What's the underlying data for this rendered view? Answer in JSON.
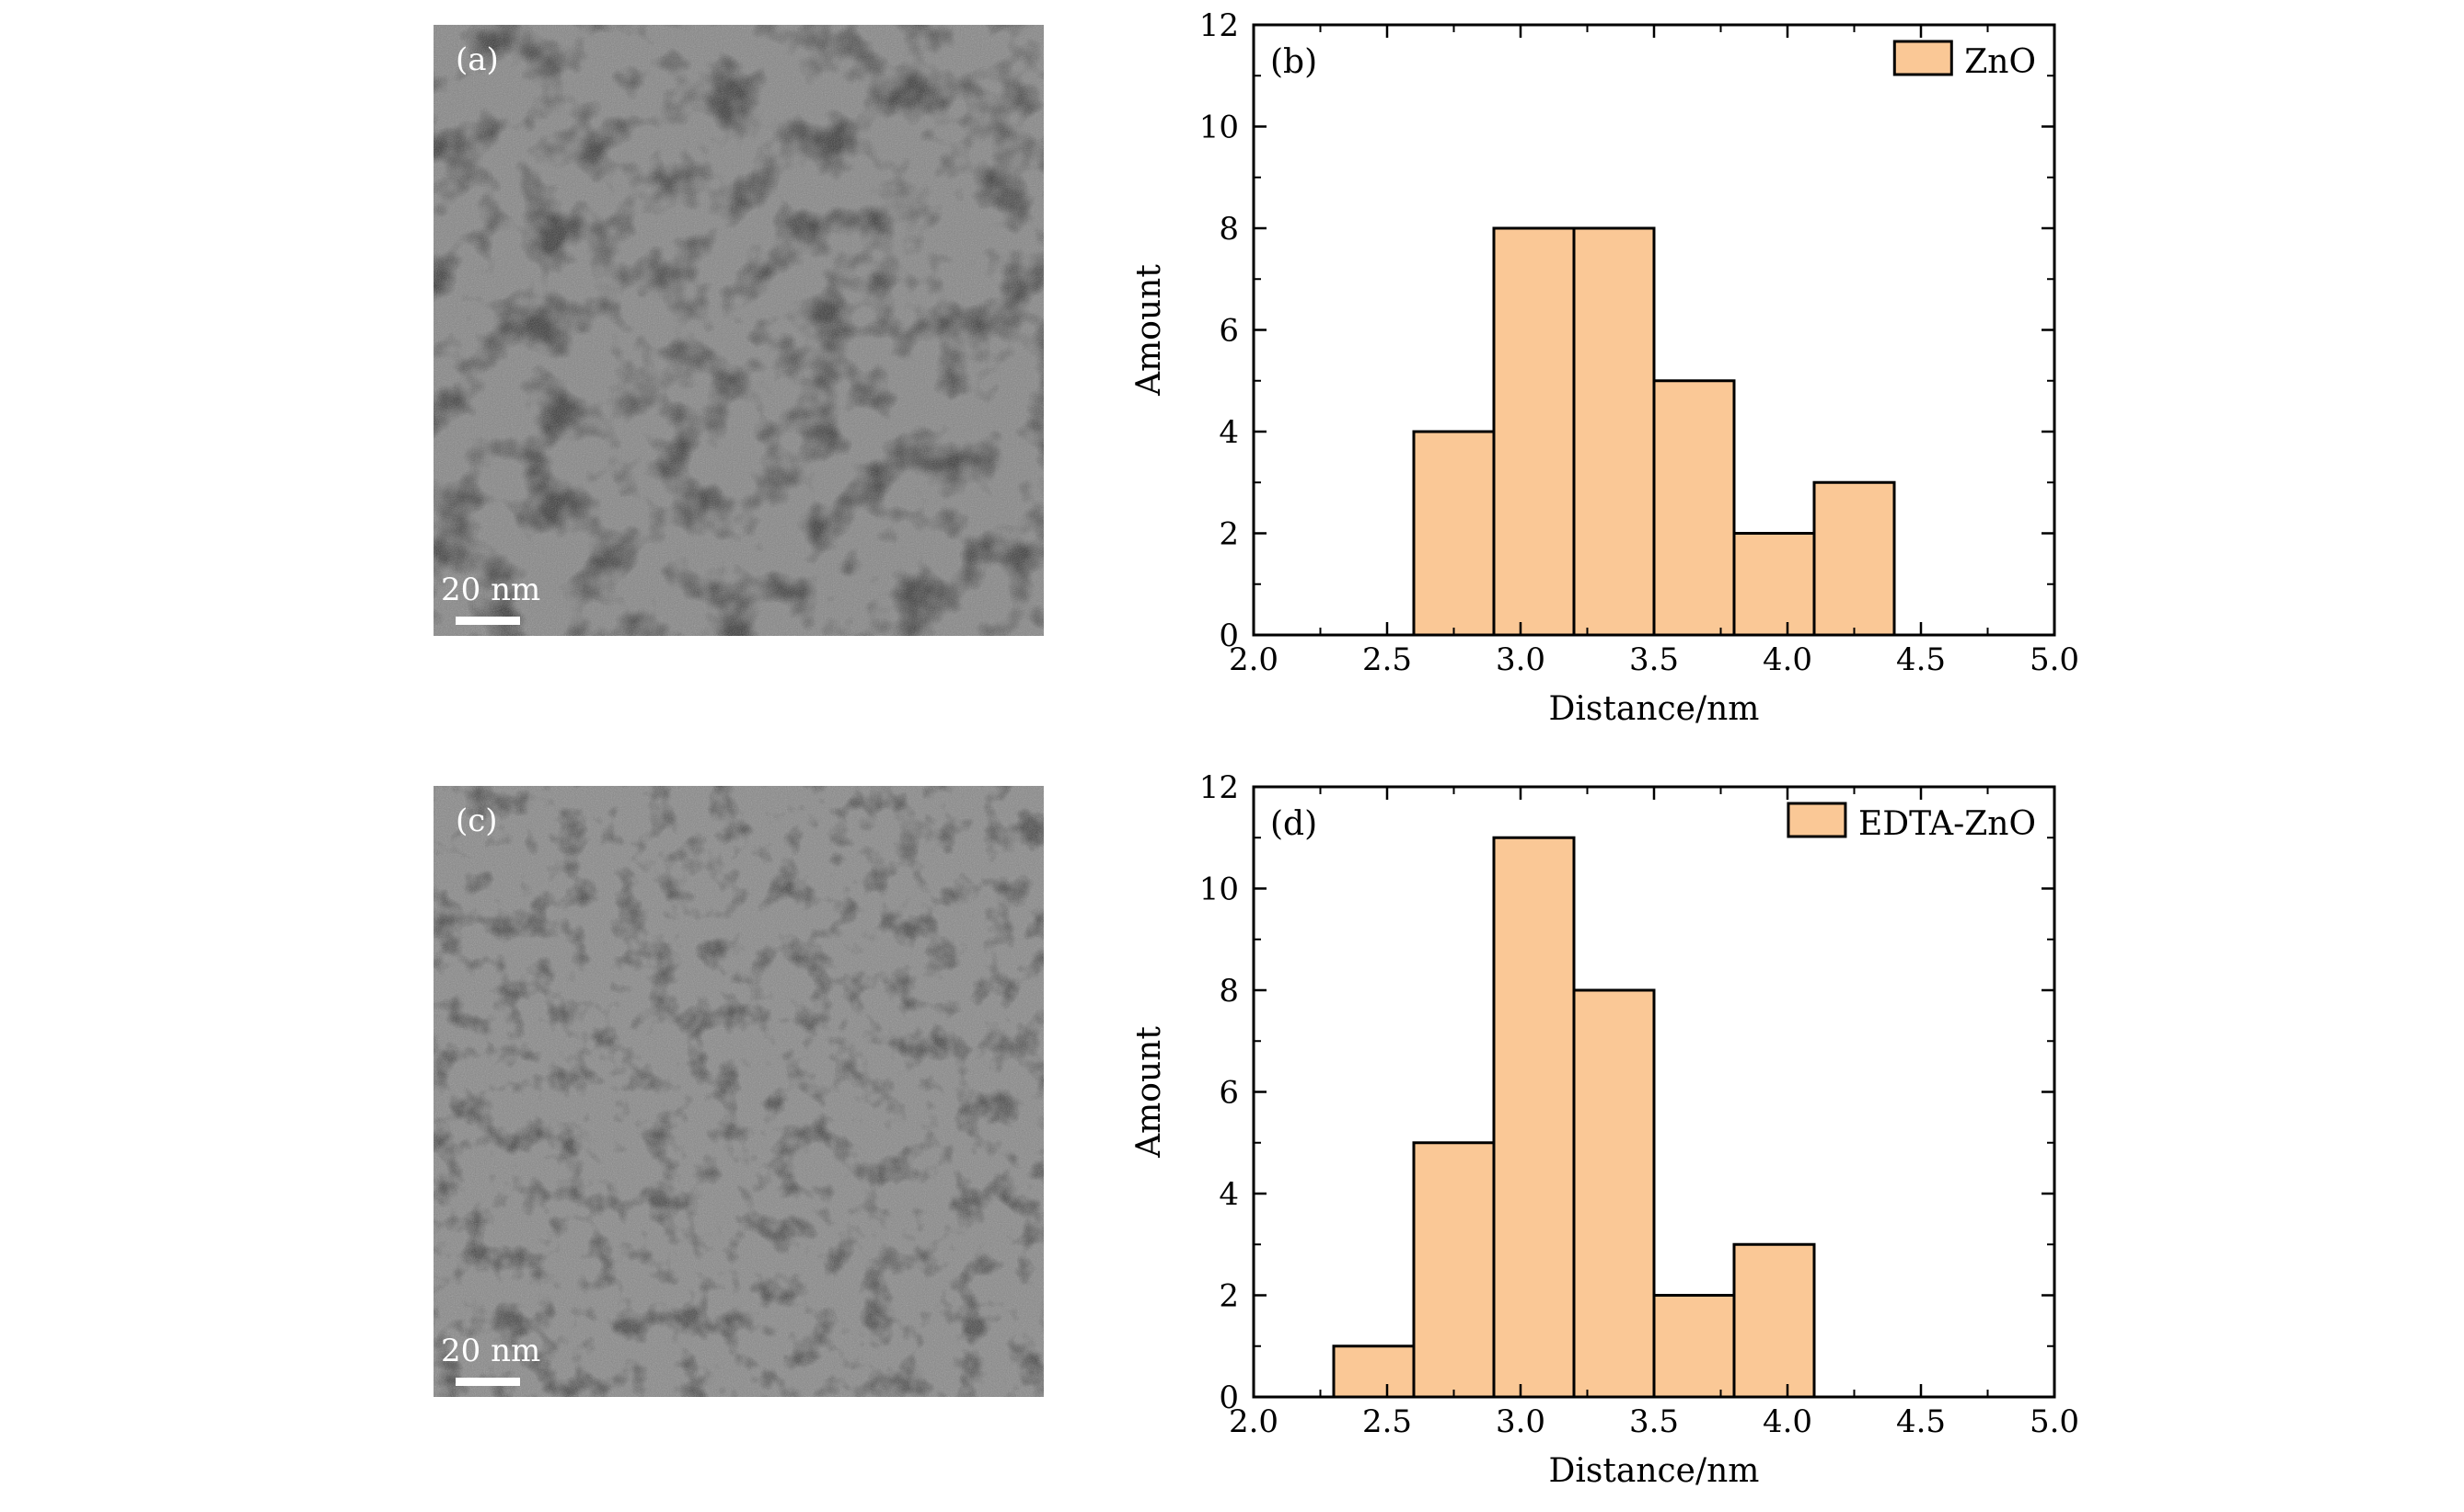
{
  "images": [
    {
      "label": "(a)",
      "scale_bar": "20 nm"
    },
    {
      "label": "(c)",
      "scale_bar": "20 nm"
    }
  ],
  "colors": {
    "bar_fill": "#fac896",
    "bar_stroke": "#000000",
    "tem_base": "#808080"
  },
  "chart_data": [
    {
      "type": "bar",
      "panel_label": "(b)",
      "legend": {
        "label": "ZnO",
        "position": "top-right"
      },
      "xlabel": "Distance/nm",
      "ylabel": "Amount",
      "xlim": [
        2.0,
        5.0
      ],
      "ylim": [
        0,
        12
      ],
      "xticks": [
        "2.0",
        "2.5",
        "3.0",
        "3.5",
        "4.0",
        "4.5",
        "5.0"
      ],
      "yticks": [
        "0",
        "2",
        "4",
        "6",
        "8",
        "10",
        "12"
      ],
      "bin_edges": [
        2.6,
        2.9,
        3.2,
        3.5,
        3.8,
        4.1,
        4.4
      ],
      "values": [
        4,
        8,
        8,
        5,
        2,
        3
      ]
    },
    {
      "type": "bar",
      "panel_label": "(d)",
      "legend": {
        "label": "EDTA-ZnO",
        "position": "top-right"
      },
      "xlabel": "Distance/nm",
      "ylabel": "Amount",
      "xlim": [
        2.0,
        5.0
      ],
      "ylim": [
        0,
        12
      ],
      "xticks": [
        "2.0",
        "2.5",
        "3.0",
        "3.5",
        "4.0",
        "4.5",
        "5.0"
      ],
      "yticks": [
        "0",
        "2",
        "4",
        "6",
        "8",
        "10",
        "12"
      ],
      "bin_edges": [
        2.3,
        2.6,
        2.9,
        3.2,
        3.5,
        3.8,
        4.1
      ],
      "values": [
        1,
        5,
        11,
        8,
        2,
        3
      ]
    }
  ]
}
